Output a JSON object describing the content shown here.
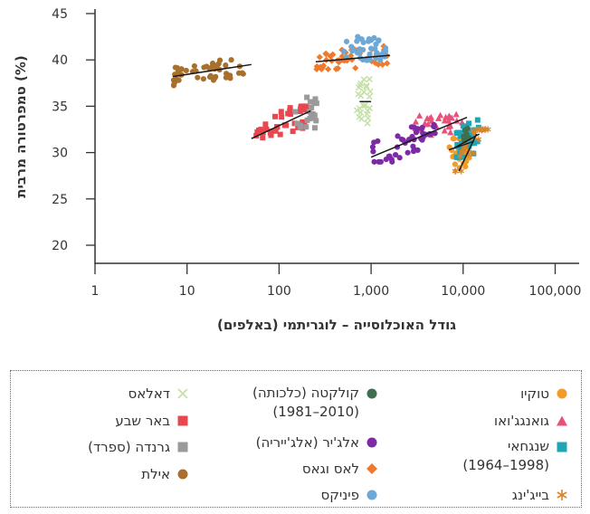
{
  "chart_data": {
    "type": "scatter",
    "x_scale": "log",
    "xlabel": "גודל האוכלוסייה – לוגריתמי (באלפים)",
    "ylabel": "טמפרטורה מרבית (%)",
    "xlim": [
      1,
      200000
    ],
    "ylim": [
      20,
      45
    ],
    "x_ticks": [
      1,
      10,
      100,
      1000,
      10000,
      100000
    ],
    "x_tick_labels": [
      "1",
      "10",
      "100",
      "1,000",
      "10,000",
      "100,000"
    ],
    "y_ticks": [
      20,
      25,
      30,
      35,
      40,
      45
    ],
    "y_tick_labels": [
      "20",
      "25",
      "30",
      "35",
      "40",
      "45"
    ],
    "grid": false,
    "legend_position": "bottom",
    "series": [
      {
        "name": "טוקיו",
        "marker": "circle",
        "color": "#f39a28",
        "x_range": [
          7000,
          13000
        ],
        "y_range": [
          25,
          31.5
        ],
        "trend": [
          [
            7000,
            30.3
          ],
          [
            13000,
            31.2
          ]
        ],
        "n": 40
      },
      {
        "name": "גואנגג'ואו",
        "marker": "triangle",
        "color": "#e8527a",
        "x_range": [
          3000,
          11000
        ],
        "y_range": [
          31.5,
          34.5
        ],
        "n": 30
      },
      {
        "name": "שנגחאי\n(1998–1964)",
        "marker": "square",
        "color": "#1fa6b6",
        "x_range": [
          8000,
          15000
        ],
        "y_range": [
          29.5,
          34.5
        ],
        "trend": [
          [
            8000,
            30.5
          ],
          [
            15000,
            32
          ]
        ],
        "n": 35
      },
      {
        "name": "בייג'ינג",
        "marker": "asterisk",
        "color": "#d9852b",
        "x_range": [
          8000,
          19000
        ],
        "y_range": [
          28,
          32.5
        ],
        "trend": [
          [
            9000,
            28
          ],
          [
            14000,
            32
          ]
        ],
        "n": 25
      },
      {
        "name": "קולקטה (כלכותה)\n(2010–1981)",
        "marker": "circle",
        "color": "#3f6f4e",
        "x_range": [
          10000,
          12000
        ],
        "y_range": [
          31,
          33
        ],
        "n": 8
      },
      {
        "name": "אלג'יר (אלג'ייריה)",
        "marker": "circle",
        "color": "#7d2aa6",
        "x_range": [
          1000,
          5000
        ],
        "y_range": [
          29,
          33
        ],
        "trend": [
          [
            1000,
            29.5
          ],
          [
            11000,
            33.8
          ]
        ],
        "n": 45
      },
      {
        "name": "לאס וגאס",
        "marker": "diamond",
        "color": "#ee7b2d",
        "x_range": [
          250,
          1600
        ],
        "y_range": [
          39,
          42
        ],
        "trend": [
          [
            250,
            39.8
          ],
          [
            1600,
            40.5
          ]
        ],
        "n": 45
      },
      {
        "name": "פיניקס",
        "marker": "circle",
        "color": "#6da8d6",
        "x_range": [
          500,
          1500
        ],
        "y_range": [
          39.5,
          43
        ],
        "n": 40
      },
      {
        "name": "דאלאס",
        "marker": "x",
        "color": "#c5e0a8",
        "x_range": [
          700,
          1000
        ],
        "y_range": [
          32,
          38.5
        ],
        "trend": [
          [
            750,
            35.5
          ],
          [
            1000,
            35.5
          ]
        ],
        "n": 25
      },
      {
        "name": "באר שבע",
        "marker": "square",
        "color": "#e8474f",
        "x_range": [
          50,
          200
        ],
        "y_range": [
          31,
          35
        ],
        "trend": [
          [
            50,
            31.5
          ],
          [
            220,
            34.5
          ]
        ],
        "n": 40
      },
      {
        "name": "גרנדה (ספרד)",
        "marker": "square",
        "color": "#9a9a9a",
        "x_range": [
          150,
          260
        ],
        "y_range": [
          32,
          37
        ],
        "n": 20
      },
      {
        "name": "אילת",
        "marker": "circle",
        "color": "#a8702c",
        "x_range": [
          7,
          50
        ],
        "y_range": [
          37,
          40
        ],
        "trend": [
          [
            7,
            38.2
          ],
          [
            50,
            39.5
          ]
        ],
        "n": 45
      }
    ]
  }
}
